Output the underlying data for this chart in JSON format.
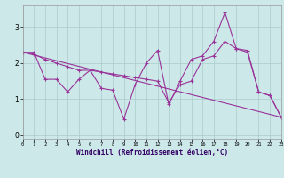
{
  "xlabel": "Windchill (Refroidissement éolien,°C)",
  "bg_color": "#cce8e8",
  "line_color": "#993399",
  "grid_color": "#aacccc",
  "xlim": [
    0,
    23
  ],
  "ylim": [
    -0.1,
    3.6
  ],
  "yticks": [
    0,
    1,
    2,
    3
  ],
  "xticks": [
    0,
    1,
    2,
    3,
    4,
    5,
    6,
    7,
    8,
    9,
    10,
    11,
    12,
    13,
    14,
    15,
    16,
    17,
    18,
    19,
    20,
    21,
    22,
    23
  ],
  "line1_x": [
    0,
    1,
    2,
    3,
    4,
    5,
    6,
    7,
    8,
    9,
    10,
    11,
    12,
    13,
    14,
    15,
    16,
    17,
    18,
    19,
    20,
    21,
    22,
    23
  ],
  "line1_y": [
    2.3,
    2.3,
    1.55,
    1.55,
    1.2,
    1.55,
    1.8,
    1.3,
    1.25,
    0.45,
    1.4,
    2.0,
    2.35,
    0.85,
    1.5,
    2.1,
    2.2,
    2.6,
    3.4,
    2.4,
    2.35,
    1.2,
    1.1,
    0.5
  ],
  "line2_x": [
    0,
    1,
    2,
    3,
    4,
    5,
    6,
    7,
    8,
    9,
    10,
    11,
    12,
    13,
    14,
    15,
    16,
    17,
    18,
    19,
    20,
    21,
    22,
    23
  ],
  "line2_y": [
    2.3,
    2.25,
    2.1,
    2.0,
    1.9,
    1.8,
    1.8,
    1.75,
    1.7,
    1.65,
    1.6,
    1.55,
    1.5,
    0.9,
    1.4,
    1.5,
    2.1,
    2.2,
    2.6,
    2.4,
    2.3,
    1.2,
    1.1,
    0.5
  ],
  "line3_x": [
    0,
    23
  ],
  "line3_y": [
    2.3,
    0.5
  ]
}
